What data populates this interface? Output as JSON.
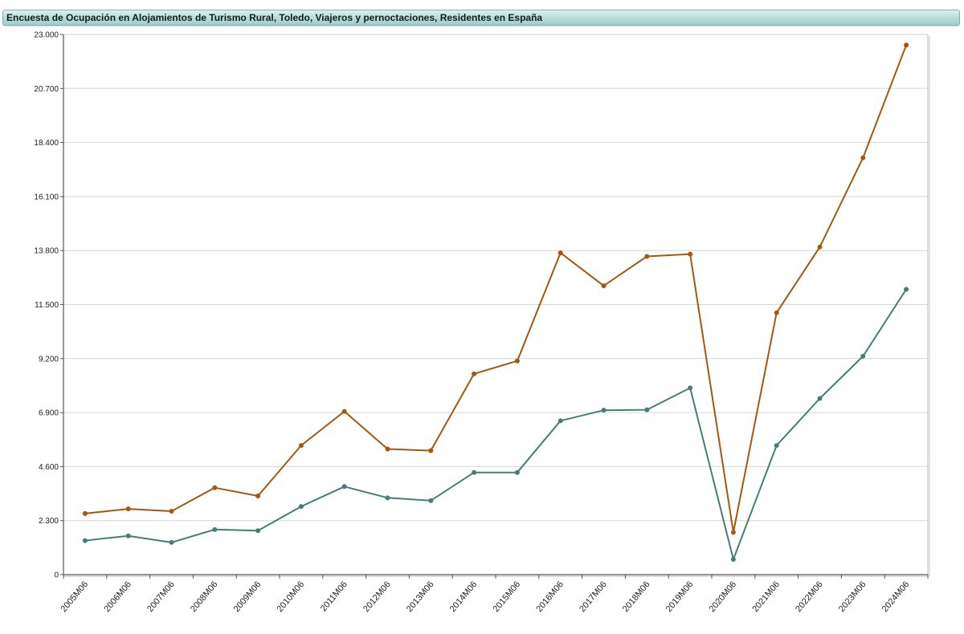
{
  "title": "Encuesta de Ocupación en Alojamientos de Turismo Rural, Toledo, Viajeros y pernoctaciones, Residentes en España",
  "chart_data": {
    "type": "line",
    "title": "Encuesta de Ocupación en Alojamientos de Turismo Rural, Toledo, Viajeros y pernoctaciones, Residentes en España",
    "xlabel": "",
    "ylabel": "",
    "categories": [
      "2005M06",
      "2006M06",
      "2007M06",
      "2008M06",
      "2009M06",
      "2010M06",
      "2011M06",
      "2012M06",
      "2013M06",
      "2014M06",
      "2015M06",
      "2016M06",
      "2017M06",
      "2018M06",
      "2019M06",
      "2020M06",
      "2021M06",
      "2022M06",
      "2023M06",
      "2024M06"
    ],
    "ylim": [
      0,
      23000
    ],
    "yticks": [
      0,
      2300,
      4600,
      6900,
      9200,
      11500,
      13800,
      16100,
      18400,
      20700,
      23000
    ],
    "ytick_labels": [
      "0",
      "2.300",
      "4.600",
      "6.900",
      "9.200",
      "11.500",
      "13.800",
      "16.100",
      "18.400",
      "20.700",
      "23.000"
    ],
    "grid": true,
    "series": [
      {
        "color": "#a5570f",
        "values": [
          2600,
          2800,
          2700,
          3700,
          3350,
          5500,
          6950,
          5350,
          5280,
          8550,
          9100,
          13700,
          12300,
          13550,
          13650,
          1800,
          11150,
          13950,
          17750,
          22550
        ]
      },
      {
        "color": "#477d78",
        "values": [
          1450,
          1650,
          1370,
          1920,
          1870,
          2900,
          3750,
          3270,
          3150,
          4350,
          4350,
          6550,
          7000,
          7020,
          7950,
          650,
          5500,
          7500,
          9300,
          12150
        ]
      }
    ]
  }
}
